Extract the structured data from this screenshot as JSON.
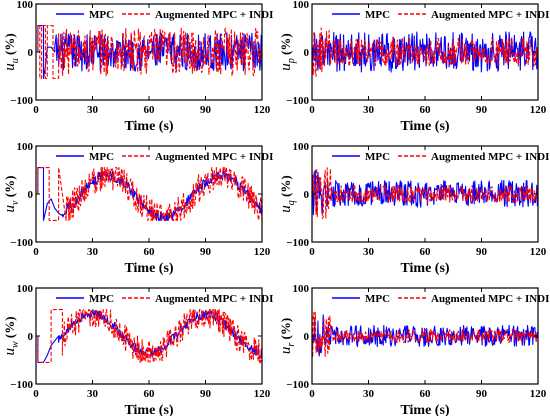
{
  "colors": {
    "mpc": "#0000ff",
    "augmented": "#ff0000",
    "axis": "#000000"
  },
  "chart_data": [
    {
      "type": "line",
      "ylabel_main": "u",
      "ylabel_sub": "u",
      "ylabel_unit": " (%)",
      "xlabel": "Time (s)",
      "xlim": [
        0,
        120
      ],
      "ylim": [
        -100,
        100
      ],
      "xticks": [
        "0",
        "30",
        "60",
        "90",
        "120"
      ],
      "yticks": [
        "100",
        "0",
        "−100"
      ],
      "legend_location": "top",
      "series": [
        {
          "name": "MPC",
          "style": "solid",
          "color": "#0000ff",
          "segments": [
            {
              "x": [
                0,
                1,
                1,
                4,
                4,
                5,
                6,
                8,
                10
              ],
              "y": [
                0,
                0,
                55,
                55,
                -55,
                -30,
                10,
                10,
                0
              ]
            }
          ],
          "noise": {
            "from": 10,
            "to": 120,
            "base": 0,
            "amplitude": 40
          }
        },
        {
          "name": "Augmented MPC + INDI",
          "style": "dashed",
          "color": "#ff0000",
          "segments": [
            {
              "x": [
                0,
                1,
                1,
                2,
                2,
                3,
                3,
                5,
                5,
                6,
                6,
                9,
                9,
                12,
                12
              ],
              "y": [
                0,
                0,
                55,
                55,
                -55,
                -55,
                55,
                55,
                -55,
                -55,
                55,
                55,
                -55,
                -55,
                40
              ]
            }
          ],
          "noise": {
            "from": 12,
            "to": 120,
            "base": 0,
            "amplitude": 50
          }
        }
      ]
    },
    {
      "type": "line",
      "ylabel_main": "u",
      "ylabel_sub": "p",
      "ylabel_unit": " (%)",
      "xlabel": "Time (s)",
      "xlim": [
        0,
        120
      ],
      "ylim": [
        -100,
        100
      ],
      "xticks": [
        "0",
        "30",
        "60",
        "90",
        "120"
      ],
      "yticks": [
        "100",
        "0",
        "−100"
      ],
      "legend_location": "top",
      "series": [
        {
          "name": "MPC",
          "style": "solid",
          "color": "#0000ff",
          "segments": [],
          "noise": {
            "from": 0,
            "to": 120,
            "base": 0,
            "amplitude": 42
          }
        },
        {
          "name": "Augmented MPC + INDI",
          "style": "dashed",
          "color": "#ff0000",
          "segments": [],
          "noise": {
            "from": 0,
            "to": 120,
            "base": 0,
            "amplitude": 30,
            "early_amplitude": 55,
            "early_until": 10
          }
        }
      ]
    },
    {
      "type": "line",
      "ylabel_main": "u",
      "ylabel_sub": "v",
      "ylabel_unit": " (%)",
      "xlabel": "Time (s)",
      "xlim": [
        0,
        120
      ],
      "ylim": [
        -100,
        100
      ],
      "xticks": [
        "0",
        "30",
        "60",
        "90",
        "120"
      ],
      "yticks": [
        "100",
        "0",
        "−100"
      ],
      "legend_location": "top",
      "series": [
        {
          "name": "MPC",
          "style": "solid",
          "color": "#0000ff",
          "segments": [
            {
              "x": [
                0,
                1,
                1,
                4,
                4,
                6,
                8,
                10,
                12,
                14
              ],
              "y": [
                0,
                0,
                55,
                55,
                -55,
                -20,
                -10,
                -30,
                -40,
                -45
              ]
            }
          ],
          "wave": {
            "from": 14,
            "to": 120,
            "offset": -5,
            "amplitude": 45,
            "period": 60,
            "phase_at": 38,
            "noise": 12
          }
        },
        {
          "name": "Augmented MPC + INDI",
          "style": "dashed",
          "color": "#ff0000",
          "segments": [
            {
              "x": [
                0,
                1,
                1,
                7,
                7,
                12,
                12,
                16
              ],
              "y": [
                0,
                0,
                55,
                55,
                -55,
                -55,
                55,
                -55
              ]
            }
          ],
          "wave": {
            "from": 16,
            "to": 120,
            "offset": -5,
            "amplitude": 45,
            "period": 60,
            "phase_at": 38,
            "noise": 30
          }
        }
      ]
    },
    {
      "type": "line",
      "ylabel_main": "u",
      "ylabel_sub": "q",
      "ylabel_unit": " (%)",
      "xlabel": "Time (s)",
      "xlim": [
        0,
        120
      ],
      "ylim": [
        -100,
        100
      ],
      "xticks": [
        "0",
        "30",
        "60",
        "90",
        "120"
      ],
      "yticks": [
        "100",
        "0",
        "−100"
      ],
      "legend_location": "top",
      "series": [
        {
          "name": "MPC",
          "style": "solid",
          "color": "#0000ff",
          "segments": [],
          "noise": {
            "from": 0,
            "to": 120,
            "base": 0,
            "amplitude": 28,
            "early_amplitude": 50,
            "early_until": 6
          }
        },
        {
          "name": "Augmented MPC + INDI",
          "style": "dashed",
          "color": "#ff0000",
          "segments": [],
          "noise": {
            "from": 0,
            "to": 120,
            "base": 0,
            "amplitude": 18,
            "early_amplitude": 55,
            "early_until": 10
          }
        }
      ]
    },
    {
      "type": "line",
      "ylabel_main": "u",
      "ylabel_sub": "w",
      "ylabel_unit": " (%)",
      "xlabel": "Time (s)",
      "xlim": [
        0,
        120
      ],
      "ylim": [
        -100,
        100
      ],
      "xticks": [
        "0",
        "30",
        "60",
        "90",
        "120"
      ],
      "yticks": [
        "100",
        "0",
        "−100"
      ],
      "legend_location": "top",
      "series": [
        {
          "name": "MPC",
          "style": "solid",
          "color": "#0000ff",
          "segments": [
            {
              "x": [
                0,
                1,
                1,
                4,
                4,
                6,
                8,
                10,
                12
              ],
              "y": [
                0,
                0,
                -55,
                -55,
                -55,
                -40,
                -20,
                -10,
                0
              ]
            }
          ],
          "wave": {
            "from": 12,
            "to": 120,
            "offset": 5,
            "amplitude": 40,
            "period": 60,
            "phase_at": 30,
            "noise": 10
          }
        },
        {
          "name": "Augmented MPC + INDI",
          "style": "dashed",
          "color": "#ff0000",
          "segments": [
            {
              "x": [
                0,
                1,
                1,
                8,
                8,
                14,
                14
              ],
              "y": [
                0,
                0,
                -55,
                -55,
                55,
                55,
                -40
              ]
            }
          ],
          "wave": {
            "from": 14,
            "to": 120,
            "offset": 5,
            "amplitude": 40,
            "period": 60,
            "phase_at": 30,
            "noise": 28
          }
        }
      ]
    },
    {
      "type": "line",
      "ylabel_main": "u",
      "ylabel_sub": "r",
      "ylabel_unit": " (%)",
      "xlabel": "Time (s)",
      "xlim": [
        0,
        120
      ],
      "ylim": [
        -100,
        100
      ],
      "xticks": [
        "0",
        "30",
        "60",
        "90",
        "120"
      ],
      "yticks": [
        "100",
        "0",
        "−100"
      ],
      "legend_location": "top",
      "series": [
        {
          "name": "MPC",
          "style": "solid",
          "color": "#0000ff",
          "segments": [],
          "noise": {
            "from": 0,
            "to": 120,
            "base": 0,
            "amplitude": 22,
            "early_amplitude": 45,
            "early_until": 6
          }
        },
        {
          "name": "Augmented MPC + INDI",
          "style": "dashed",
          "color": "#ff0000",
          "segments": [],
          "noise": {
            "from": 0,
            "to": 120,
            "base": 0,
            "amplitude": 14,
            "early_amplitude": 55,
            "early_until": 10
          }
        }
      ]
    }
  ]
}
